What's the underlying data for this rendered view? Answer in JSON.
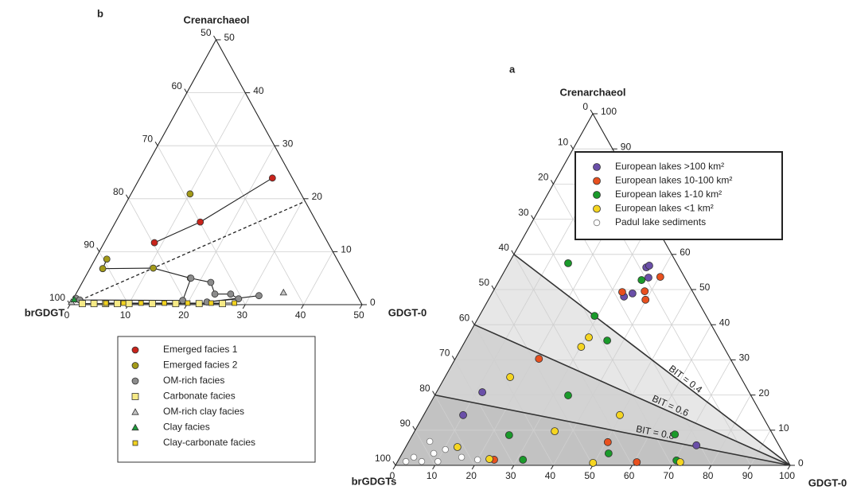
{
  "chart_data": [
    {
      "type": "ternary",
      "panel_label": "b",
      "top_label": "Crenarchaeol",
      "left_label": "brGDGT",
      "right_label": "GDGT-0",
      "xlim": [
        0,
        50
      ],
      "ylim": [
        0,
        50
      ],
      "xticks": [
        0,
        10,
        20,
        30,
        40,
        50
      ],
      "yticks": [
        0,
        10,
        20,
        30,
        40,
        50
      ],
      "zticks": [
        50,
        60,
        70,
        80,
        90,
        100
      ],
      "grid": true,
      "dashed_line": {
        "x": 30.5,
        "y": 19.5
      },
      "series": [
        {
          "name": "Emerged facies 1",
          "marker": "circle",
          "color": "#c8231b",
          "connect": true,
          "x": [
            22.7,
            14.5,
            8.6
          ],
          "values": [
            23.9,
            15.6,
            11.7
          ]
        },
        {
          "name": "Emerged facies 2",
          "marker": "circle",
          "color": "#a39a18",
          "connect": true,
          "x": [
            10.1,
            null,
            2.0,
            2.2,
            10.8,
            18.1
          ],
          "values": [
            20.9,
            null,
            8.6,
            6.8,
            6.9,
            5.0
          ]
        },
        {
          "name": "OM-rich facies",
          "marker": "circle",
          "color": "#8c8c8c",
          "connect": true,
          "x": [
            0.4,
            1.2,
            18.9,
            18.2,
            22.0,
            23.8,
            26.5,
            28.3,
            23.2,
            31.5
          ],
          "values": [
            1.2,
            0.9,
            0.8,
            5.0,
            4.2,
            2.0,
            2.0,
            1.1,
            0.5,
            1.7
          ]
        },
        {
          "name": "Carbonate facies",
          "marker": "square",
          "color": "#f6ea86",
          "connect": true,
          "x": [
            2,
            4,
            6,
            8,
            10,
            14,
            18,
            22,
            26
          ],
          "values": [
            0.2,
            0.2,
            0.2,
            0.2,
            0.2,
            0.2,
            0.2,
            0.2,
            0.2
          ]
        },
        {
          "name": "OM-rich clay facies",
          "marker": "triangle",
          "color": "#c4c4c4",
          "connect": false,
          "x": [
            0.0,
            35.4
          ],
          "values": [
            0.5,
            2.3
          ]
        },
        {
          "name": "Clay facies",
          "marker": "triangle",
          "color": "#1c9a3a",
          "connect": false,
          "x": [
            0.2
          ],
          "values": [
            1.0
          ]
        },
        {
          "name": "Clay-carbonate facies",
          "marker": "smallsquare",
          "color": "#f2d21e",
          "connect": true,
          "x": [
            6,
            9,
            12,
            16,
            20,
            24,
            28
          ],
          "values": [
            0.3,
            0.3,
            0.3,
            0.3,
            0.3,
            0.3,
            0.3
          ]
        }
      ]
    },
    {
      "type": "ternary",
      "panel_label": "a",
      "top_label": "Crenarchaeol",
      "left_label": "brGDGTs",
      "right_label": "GDGT-0",
      "xlim": [
        0,
        100
      ],
      "ylim": [
        0,
        100
      ],
      "xticks": [
        0,
        10,
        20,
        30,
        40,
        50,
        60,
        70,
        80,
        90,
        100
      ],
      "yticks": [
        0,
        10,
        20,
        30,
        40,
        50,
        60,
        70,
        80,
        90,
        100
      ],
      "zticks": [
        0,
        10,
        20,
        30,
        40,
        50,
        60,
        70,
        80,
        90,
        100
      ],
      "grid": true,
      "bit_lines": [
        {
          "label": "BIT = 0.4",
          "brgdgt": 40
        },
        {
          "label": "BIT = 0.6",
          "brgdgt": 60
        },
        {
          "label": "BIT = 0.8",
          "brgdgt": 80
        }
      ],
      "series": [
        {
          "name": "European lakes >100 km²",
          "marker": "circle",
          "color": "#6a4fa8",
          "x": [
            35.4,
            35.9,
            37.4,
            35.6,
            33.9,
            11.6,
            10.0,
            73.4
          ],
          "values": [
            56.3,
            56.8,
            53.4,
            48.9,
            48.0,
            20.8,
            14.3,
            5.7
          ]
        },
        {
          "name": "European lakes 10-100 km²",
          "marker": "circle",
          "color": "#e8501e",
          "x": [
            40.3,
            38.4,
            32.8,
            39.8,
            21.2,
            50.5,
            60.7,
            24.2
          ],
          "values": [
            53.6,
            49.5,
            49.3,
            47.1,
            30.3,
            6.6,
            0.9,
            1.6
          ]
        },
        {
          "name": "European lakes 1-10 km²",
          "marker": "circle",
          "color": "#1a9a2a",
          "x": [
            15.0,
            36.0,
            29.2,
            35.9,
            33.8,
            66.4,
            24.5,
            52.3,
            31.5,
            70.5
          ],
          "values": [
            57.5,
            52.7,
            42.5,
            35.5,
            19.9,
            8.8,
            8.6,
            3.4,
            1.6,
            1.4
          ]
        },
        {
          "name": "European lakes <1 km²",
          "marker": "circle",
          "color": "#f5d521",
          "x": [
            30.8,
            30.2,
            16.5,
            49.7,
            35.5,
            49.7,
            71.7,
            22.9,
            13.1
          ],
          "values": [
            36.4,
            33.7,
            25.1,
            14.3,
            9.7,
            0.7,
            0.9,
            1.8,
            5.2
          ]
        },
        {
          "name": "Padul lake sediments",
          "marker": "open",
          "color": "#777777",
          "x": [
            5.3,
            10.4,
            3.5,
            6.1,
            8.0,
            15.6,
            20.0,
            2.1,
            10.2
          ],
          "values": [
            6.8,
            4.5,
            2.3,
            1.1,
            3.4,
            2.3,
            1.6,
            1.1,
            1.1
          ]
        }
      ]
    }
  ]
}
